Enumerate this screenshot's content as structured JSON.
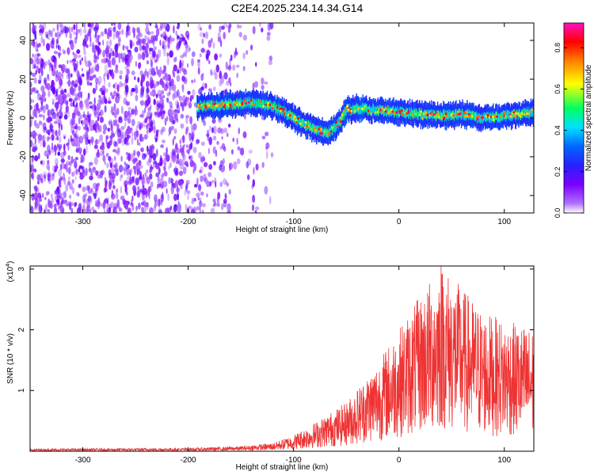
{
  "title": "C2E4.2025.234.14.34.G14",
  "top_chart": {
    "type": "heatmap",
    "xlabel": "Height of straight line (km)",
    "ylabel": "Frequency (Hz)",
    "xlim": [
      -350,
      128
    ],
    "ylim": [
      -49,
      49
    ],
    "xticks": [
      -300,
      -200,
      -100,
      0,
      100
    ],
    "yticks": [
      -40,
      -20,
      0,
      20,
      40
    ],
    "colorbar": {
      "label": "Normalized spectral amplitude",
      "range": [
        0,
        0.92
      ],
      "ticks": [
        0.0,
        0.2,
        0.4,
        0.6,
        0.8
      ],
      "colors": [
        "#ffffff",
        "#8a00ff",
        "#2a00ff",
        "#0066ff",
        "#00e5ff",
        "#00ff40",
        "#ffff00",
        "#ff8000",
        "#ff0000",
        "#ff00c0"
      ]
    },
    "signal_track": {
      "heights_km": [
        -190,
        -160,
        -140,
        -120,
        -100,
        -90,
        -80,
        -70,
        -60,
        -50,
        -40,
        -20,
        0,
        20,
        40,
        60,
        80,
        100,
        128
      ],
      "frequency_hz": [
        6,
        7,
        8,
        6,
        0,
        -3,
        -6,
        -8,
        -5,
        4,
        5,
        4,
        3,
        2,
        1,
        2,
        0,
        1,
        3
      ]
    }
  },
  "bottom_chart": {
    "type": "line",
    "xlabel": "Height of straight line (km)",
    "ylabel": "SNR (10 * v/v)",
    "exponent_label": "(x10",
    "exponent_power": "4",
    "exponent_close": ")",
    "xlim": [
      -350,
      128
    ],
    "ylim": [
      0,
      3.05
    ],
    "xticks": [
      -300,
      -200,
      -100,
      0,
      100
    ],
    "yticks": [
      1,
      2,
      3
    ],
    "line_color": "#ee3333",
    "envelope": {
      "heights_km": [
        -350,
        -200,
        -150,
        -120,
        -100,
        -80,
        -50,
        -20,
        0,
        20,
        40,
        60,
        80,
        100,
        128
      ],
      "snr_x1e4": [
        0.03,
        0.04,
        0.06,
        0.1,
        0.2,
        0.35,
        0.6,
        1.1,
        1.5,
        1.9,
        2.3,
        2.0,
        1.7,
        1.6,
        1.5
      ]
    },
    "peak": {
      "height_km": 40,
      "snr_x1e4": 3.05
    }
  }
}
